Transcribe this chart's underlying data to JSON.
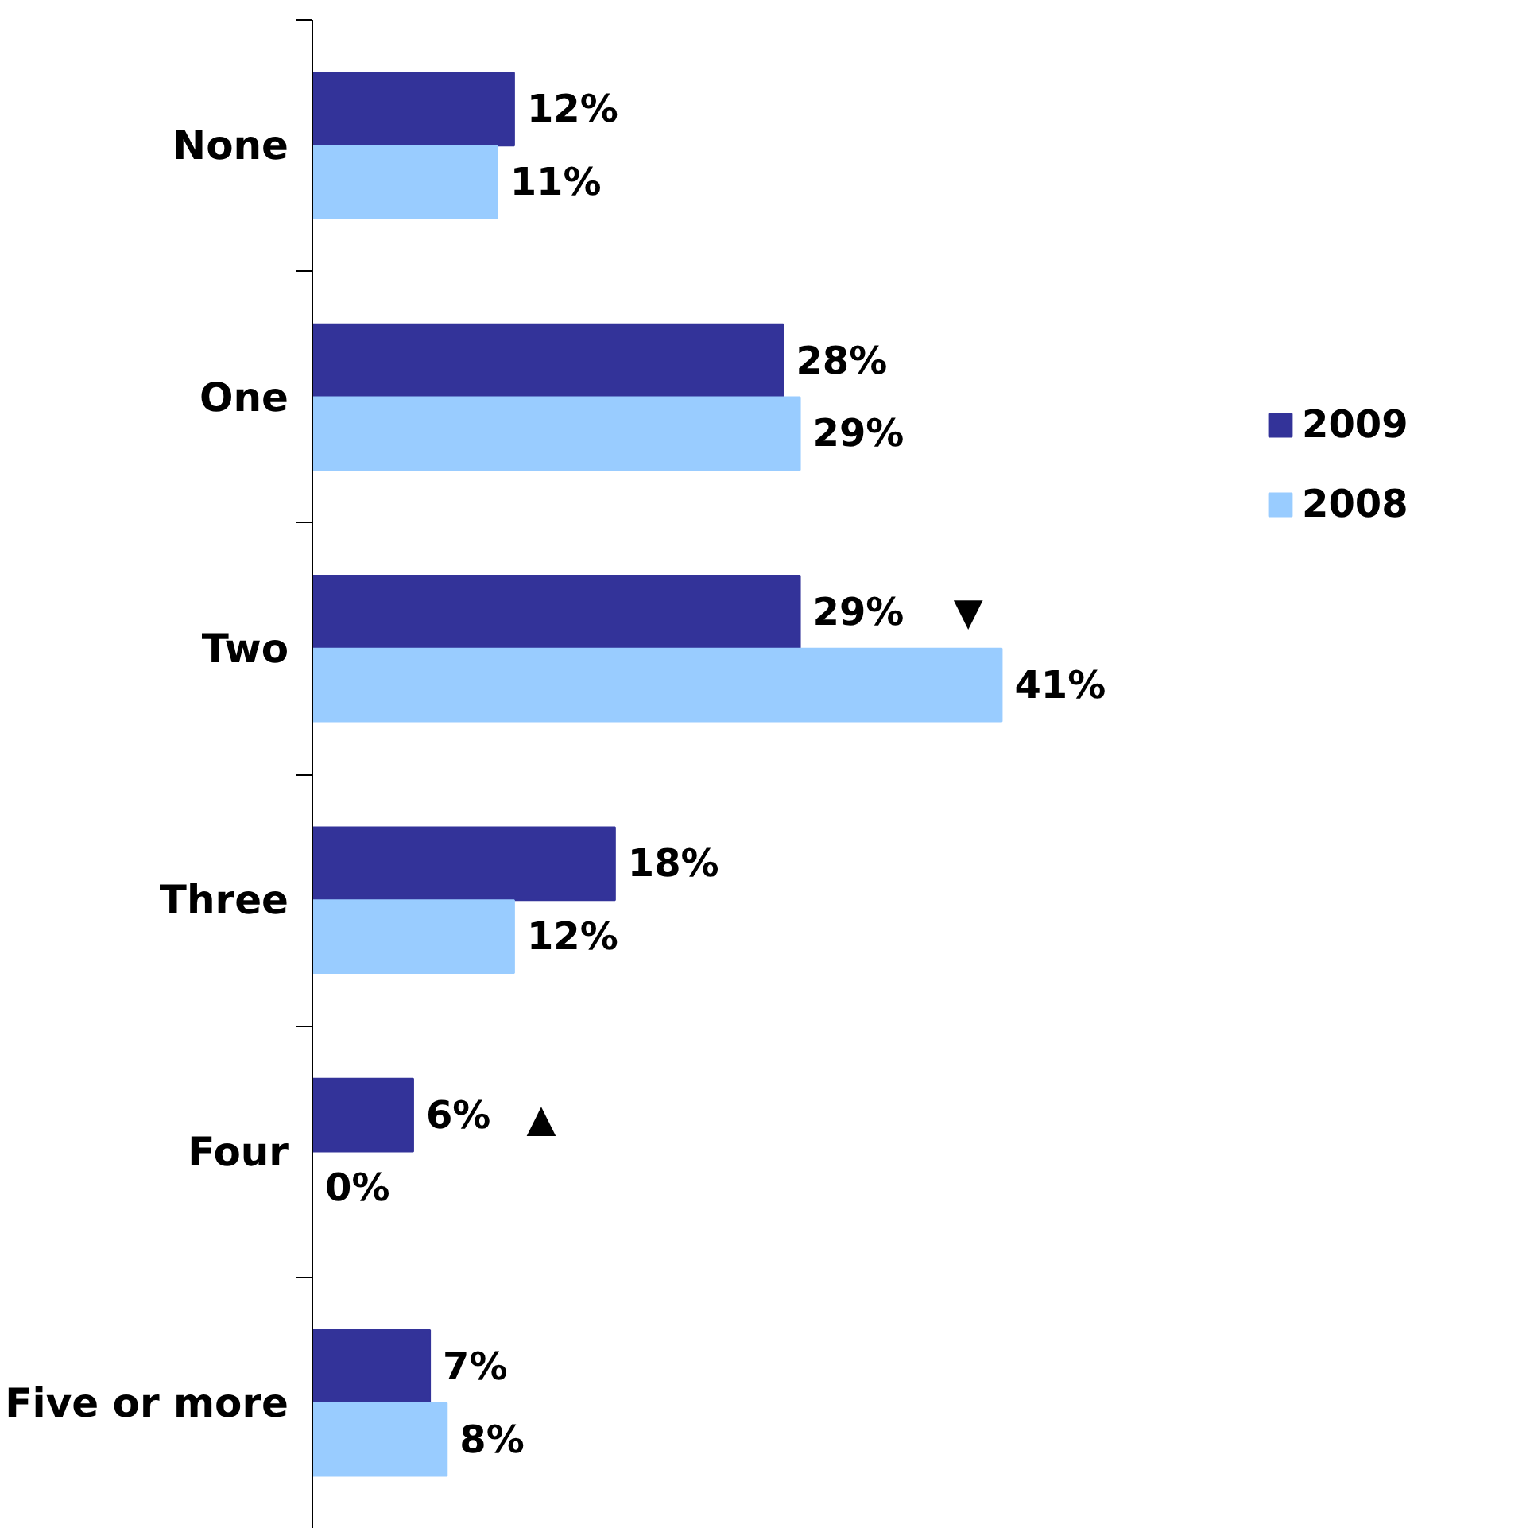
{
  "chart_data": {
    "type": "bar",
    "orientation": "horizontal",
    "categories": [
      "None",
      "One",
      "Two",
      "Three",
      "Four",
      "Five or more"
    ],
    "series": [
      {
        "name": "2009",
        "color": "#333399",
        "values": [
          12,
          28,
          29,
          18,
          6,
          7
        ],
        "value_labels": [
          "12%",
          "28%",
          "29%",
          "18%",
          "6%",
          "7%"
        ]
      },
      {
        "name": "2008",
        "color": "#99ccff",
        "values": [
          11,
          29,
          41,
          12,
          0,
          8
        ],
        "value_labels": [
          "11%",
          "29%",
          "41%",
          "12%",
          "0%",
          "8%"
        ]
      }
    ],
    "annotations": [
      {
        "text": "▼",
        "x": 39,
        "y": "Two"
      },
      "▲"
    ],
    "legend": "right",
    "grid": false
  }
}
